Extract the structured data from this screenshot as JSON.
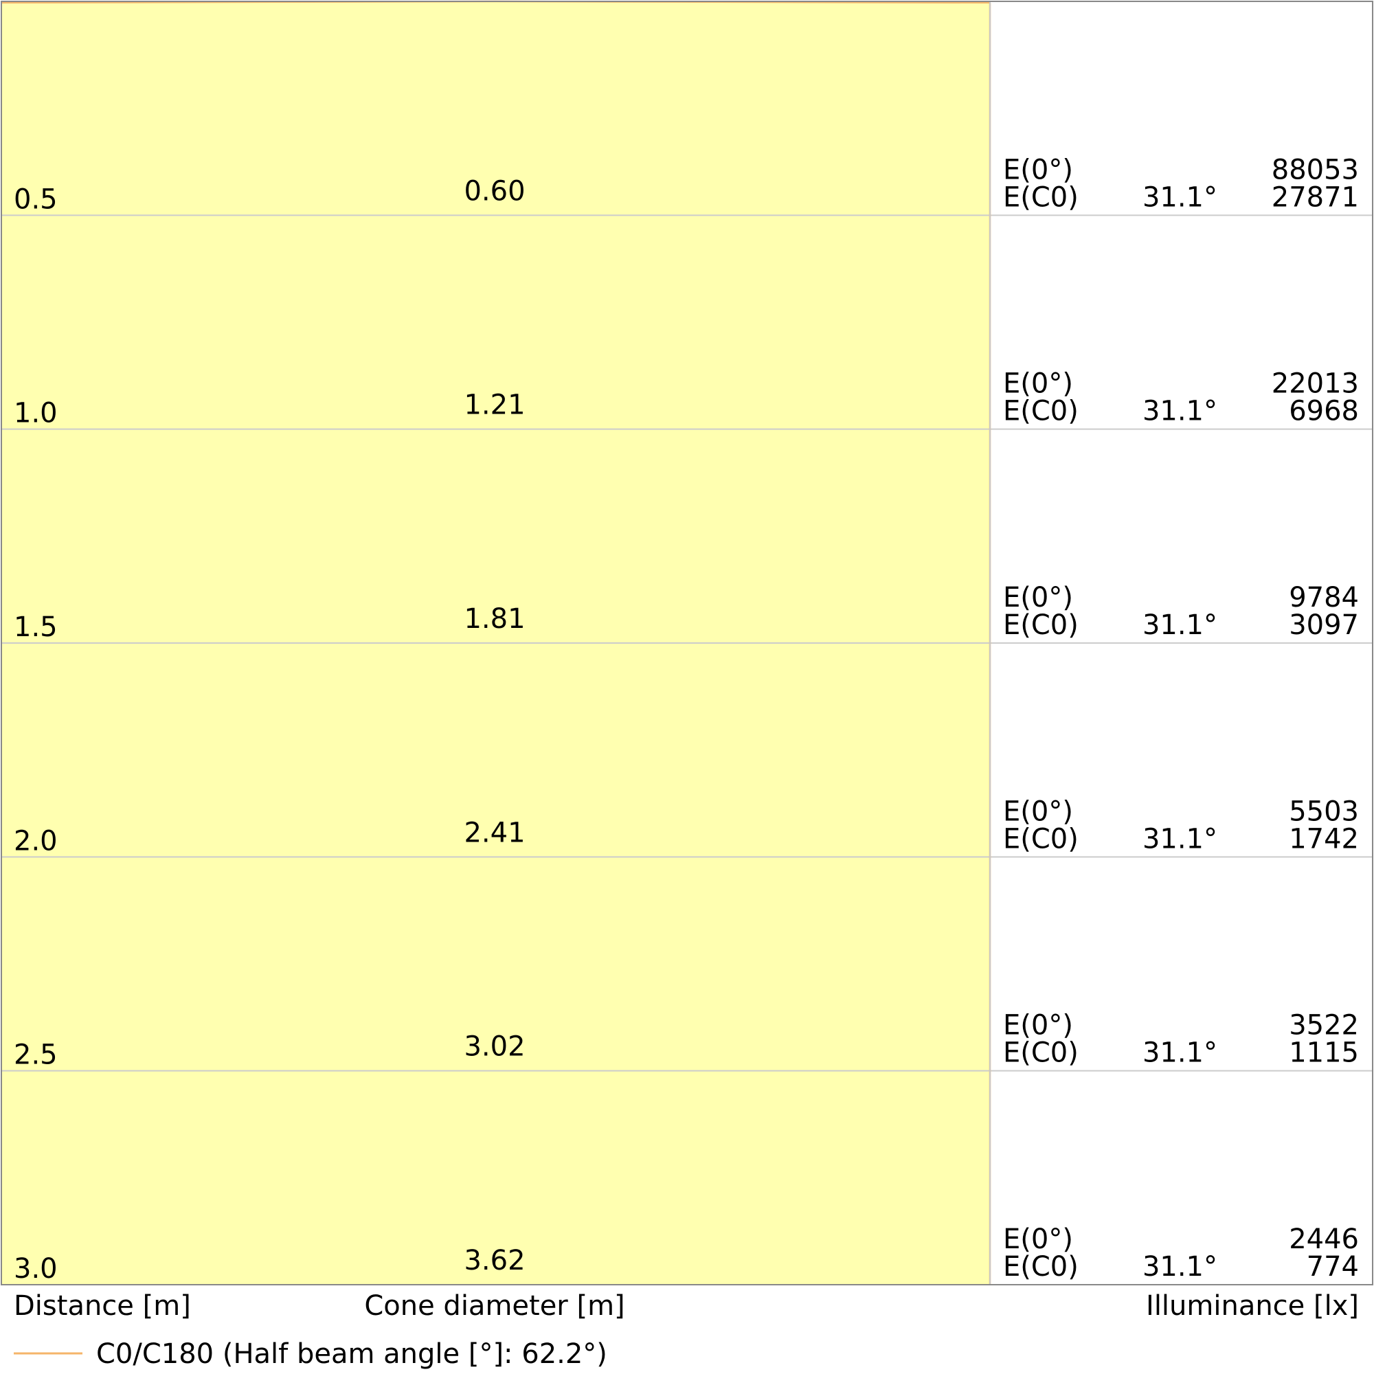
{
  "chart_data": {
    "type": "area",
    "title": "",
    "xlabel": "Distance [m]",
    "center_label": "Cone diameter [m]",
    "ylabel": "Illuminance [lx]",
    "legend": {
      "label": "C0/C180 (Half beam angle [°]: 62.2°)",
      "color": "#f5b56a",
      "placement": "bottom-left"
    },
    "fill_color": "#ffffb0",
    "edge_color": "#f5b56a",
    "grid": true,
    "distance_range": [
      0,
      3.0
    ],
    "rows": [
      {
        "distance": "0.5",
        "diameter": "0.60",
        "e0_label": "E(0°)",
        "ec0_label": "E(C0)",
        "angle": "31.1°",
        "e0": "88053",
        "ec0": "27871"
      },
      {
        "distance": "1.0",
        "diameter": "1.21",
        "e0_label": "E(0°)",
        "ec0_label": "E(C0)",
        "angle": "31.1°",
        "e0": "22013",
        "ec0": "6968"
      },
      {
        "distance": "1.5",
        "diameter": "1.81",
        "e0_label": "E(0°)",
        "ec0_label": "E(C0)",
        "angle": "31.1°",
        "e0": "9784",
        "ec0": "3097"
      },
      {
        "distance": "2.0",
        "diameter": "2.41",
        "e0_label": "E(0°)",
        "ec0_label": "E(C0)",
        "angle": "31.1°",
        "e0": "5503",
        "ec0": "1742"
      },
      {
        "distance": "2.5",
        "diameter": "3.02",
        "e0_label": "E(0°)",
        "ec0_label": "E(C0)",
        "angle": "31.1°",
        "e0": "3522",
        "ec0": "1115"
      },
      {
        "distance": "3.0",
        "diameter": "3.62",
        "e0_label": "E(0°)",
        "ec0_label": "E(C0)",
        "angle": "31.1°",
        "e0": "2446",
        "ec0": "774"
      }
    ]
  }
}
